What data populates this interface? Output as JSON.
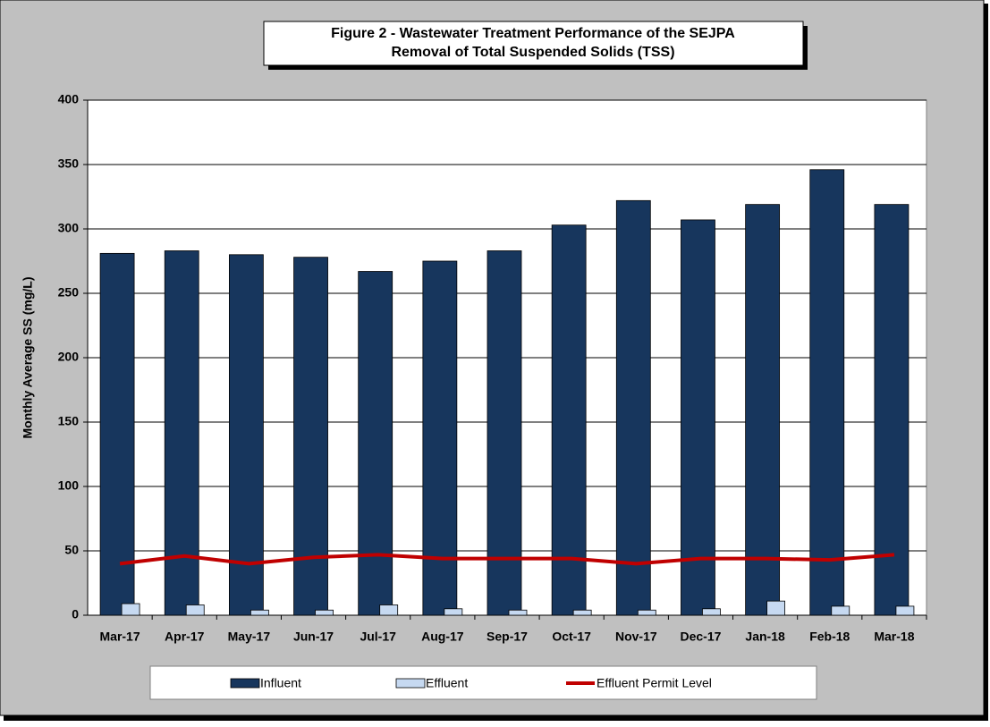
{
  "chart_data": {
    "type": "bar",
    "title": "Figure 2 - Wastewater Treatment Performance of the SEJPA",
    "subtitle": "Removal of Total Suspended Solids (TSS)",
    "y_label": "Monthly Average SS (mg/L)",
    "categories": [
      "Mar-17",
      "Apr-17",
      "May-17",
      "Jun-17",
      "Jul-17",
      "Aug-17",
      "Sep-17",
      "Oct-17",
      "Nov-17",
      "Dec-17",
      "Jan-18",
      "Feb-18",
      "Mar-18"
    ],
    "series": [
      {
        "name": "Influent",
        "color": "#17365d",
        "type": "bar",
        "values": [
          281,
          283,
          280,
          278,
          267,
          275,
          283,
          303,
          322,
          307,
          319,
          346,
          319
        ]
      },
      {
        "name": "Effluent",
        "color": "#c6d9f1",
        "type": "bar",
        "values": [
          9,
          8,
          4,
          4,
          8,
          5,
          4,
          4,
          4,
          5,
          11,
          7,
          7
        ]
      },
      {
        "name": "Effluent Permit Level",
        "color": "#c00000",
        "type": "line",
        "values": [
          40,
          46,
          40,
          45,
          47,
          44,
          44,
          44,
          40,
          44,
          44,
          43,
          47
        ]
      }
    ],
    "ylim": [
      0,
      400
    ],
    "yticks": [
      0,
      50,
      100,
      150,
      200,
      250,
      300,
      350,
      400
    ],
    "grid": true,
    "legend": "bottom"
  }
}
